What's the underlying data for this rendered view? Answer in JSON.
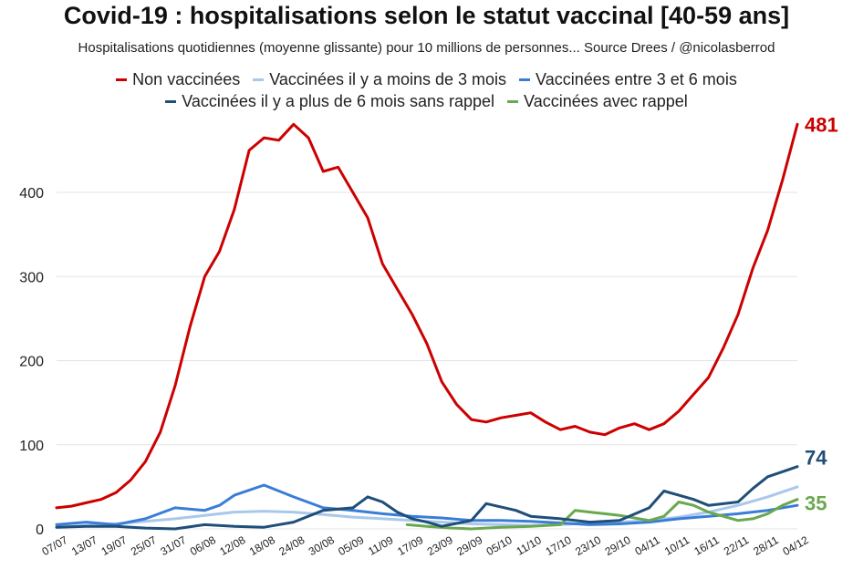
{
  "chart_data": {
    "type": "line",
    "title": "Covid-19 : hospitalisations selon le statut vaccinal [40-59 ans]",
    "subtitle": "Hospitalisations quotidiennes (moyenne glissante) pour 10 millions de personnes... Source Drees / @nicolasberrod",
    "ylim": [
      0,
      490
    ],
    "yticks": [
      0,
      100,
      200,
      300,
      400
    ],
    "grid": true,
    "x_tick_labels": [
      "07/07",
      "13/07",
      "19/07",
      "25/07",
      "31/07",
      "06/08",
      "12/08",
      "18/08",
      "24/08",
      "30/08",
      "05/09",
      "11/09",
      "17/09",
      "23/09",
      "29/09",
      "05/10",
      "11/10",
      "17/10",
      "23/10",
      "29/10",
      "04/11",
      "10/11",
      "16/11",
      "22/11",
      "28/11",
      "04/12"
    ],
    "x_start": "2021-07-07",
    "x_end": "2021-12-04",
    "series": [
      {
        "name": "Non vaccinées",
        "color": "#cc0000",
        "end_label": "481",
        "points": [
          [
            "2021-07-07",
            25
          ],
          [
            "2021-07-10",
            27
          ],
          [
            "2021-07-13",
            31
          ],
          [
            "2021-07-16",
            35
          ],
          [
            "2021-07-19",
            43
          ],
          [
            "2021-07-22",
            58
          ],
          [
            "2021-07-25",
            80
          ],
          [
            "2021-07-28",
            115
          ],
          [
            "2021-07-31",
            170
          ],
          [
            "2021-08-03",
            240
          ],
          [
            "2021-08-06",
            300
          ],
          [
            "2021-08-09",
            330
          ],
          [
            "2021-08-12",
            380
          ],
          [
            "2021-08-15",
            450
          ],
          [
            "2021-08-18",
            465
          ],
          [
            "2021-08-21",
            462
          ],
          [
            "2021-08-24",
            481
          ],
          [
            "2021-08-27",
            465
          ],
          [
            "2021-08-30",
            425
          ],
          [
            "2021-09-02",
            430
          ],
          [
            "2021-09-05",
            400
          ],
          [
            "2021-09-08",
            370
          ],
          [
            "2021-09-11",
            315
          ],
          [
            "2021-09-14",
            285
          ],
          [
            "2021-09-17",
            255
          ],
          [
            "2021-09-20",
            220
          ],
          [
            "2021-09-23",
            175
          ],
          [
            "2021-09-26",
            148
          ],
          [
            "2021-09-29",
            130
          ],
          [
            "2021-10-02",
            127
          ],
          [
            "2021-10-05",
            132
          ],
          [
            "2021-10-08",
            135
          ],
          [
            "2021-10-11",
            138
          ],
          [
            "2021-10-14",
            127
          ],
          [
            "2021-10-17",
            118
          ],
          [
            "2021-10-20",
            122
          ],
          [
            "2021-10-23",
            115
          ],
          [
            "2021-10-26",
            112
          ],
          [
            "2021-10-29",
            120
          ],
          [
            "2021-11-01",
            125
          ],
          [
            "2021-11-04",
            118
          ],
          [
            "2021-11-07",
            125
          ],
          [
            "2021-11-10",
            140
          ],
          [
            "2021-11-13",
            160
          ],
          [
            "2021-11-16",
            180
          ],
          [
            "2021-11-19",
            215
          ],
          [
            "2021-11-22",
            255
          ],
          [
            "2021-11-25",
            310
          ],
          [
            "2021-11-28",
            355
          ],
          [
            "2021-12-01",
            415
          ],
          [
            "2021-12-04",
            481
          ]
        ]
      },
      {
        "name": "Vaccinées il y a moins de 3 mois",
        "color": "#a9c8ec",
        "end_label": "",
        "points": [
          [
            "2021-07-07",
            2
          ],
          [
            "2021-07-13",
            4
          ],
          [
            "2021-07-19",
            6
          ],
          [
            "2021-07-25",
            9
          ],
          [
            "2021-07-31",
            12
          ],
          [
            "2021-08-06",
            16
          ],
          [
            "2021-08-12",
            20
          ],
          [
            "2021-08-18",
            21
          ],
          [
            "2021-08-24",
            20
          ],
          [
            "2021-08-30",
            17
          ],
          [
            "2021-09-05",
            14
          ],
          [
            "2021-09-11",
            12
          ],
          [
            "2021-09-17",
            10
          ],
          [
            "2021-09-23",
            8
          ],
          [
            "2021-09-29",
            6
          ],
          [
            "2021-10-05",
            5
          ],
          [
            "2021-10-11",
            4
          ],
          [
            "2021-10-17",
            5
          ],
          [
            "2021-10-23",
            7
          ],
          [
            "2021-10-29",
            8
          ],
          [
            "2021-11-04",
            10
          ],
          [
            "2021-11-10",
            14
          ],
          [
            "2021-11-16",
            20
          ],
          [
            "2021-11-22",
            28
          ],
          [
            "2021-11-28",
            38
          ],
          [
            "2021-12-04",
            50
          ]
        ]
      },
      {
        "name": "Vaccinées entre 3 et 6 mois",
        "color": "#3a7dd8",
        "end_label": "",
        "points": [
          [
            "2021-07-07",
            5
          ],
          [
            "2021-07-13",
            8
          ],
          [
            "2021-07-19",
            5
          ],
          [
            "2021-07-25",
            12
          ],
          [
            "2021-07-31",
            25
          ],
          [
            "2021-08-06",
            22
          ],
          [
            "2021-08-09",
            28
          ],
          [
            "2021-08-12",
            40
          ],
          [
            "2021-08-18",
            52
          ],
          [
            "2021-08-24",
            38
          ],
          [
            "2021-08-30",
            25
          ],
          [
            "2021-09-05",
            22
          ],
          [
            "2021-09-11",
            18
          ],
          [
            "2021-09-17",
            15
          ],
          [
            "2021-09-23",
            13
          ],
          [
            "2021-09-29",
            10
          ],
          [
            "2021-10-05",
            10
          ],
          [
            "2021-10-11",
            9
          ],
          [
            "2021-10-17",
            7
          ],
          [
            "2021-10-23",
            5
          ],
          [
            "2021-10-29",
            6
          ],
          [
            "2021-11-04",
            8
          ],
          [
            "2021-11-10",
            12
          ],
          [
            "2021-11-16",
            15
          ],
          [
            "2021-11-22",
            18
          ],
          [
            "2021-11-28",
            22
          ],
          [
            "2021-12-04",
            28
          ]
        ]
      },
      {
        "name": "Vaccinées il y a plus de 6 mois sans rappel",
        "color": "#1f4e79",
        "end_label": "74",
        "points": [
          [
            "2021-07-07",
            2
          ],
          [
            "2021-07-13",
            3
          ],
          [
            "2021-07-19",
            3
          ],
          [
            "2021-07-25",
            1
          ],
          [
            "2021-07-31",
            0
          ],
          [
            "2021-08-06",
            5
          ],
          [
            "2021-08-12",
            3
          ],
          [
            "2021-08-18",
            2
          ],
          [
            "2021-08-24",
            8
          ],
          [
            "2021-08-30",
            22
          ],
          [
            "2021-09-05",
            25
          ],
          [
            "2021-09-08",
            38
          ],
          [
            "2021-09-11",
            32
          ],
          [
            "2021-09-14",
            20
          ],
          [
            "2021-09-17",
            12
          ],
          [
            "2021-09-20",
            8
          ],
          [
            "2021-09-23",
            3
          ],
          [
            "2021-09-29",
            10
          ],
          [
            "2021-10-02",
            30
          ],
          [
            "2021-10-08",
            22
          ],
          [
            "2021-10-11",
            15
          ],
          [
            "2021-10-17",
            12
          ],
          [
            "2021-10-23",
            8
          ],
          [
            "2021-10-29",
            10
          ],
          [
            "2021-11-04",
            25
          ],
          [
            "2021-11-07",
            45
          ],
          [
            "2021-11-10",
            40
          ],
          [
            "2021-11-13",
            35
          ],
          [
            "2021-11-16",
            28
          ],
          [
            "2021-11-22",
            32
          ],
          [
            "2021-11-25",
            48
          ],
          [
            "2021-11-28",
            62
          ],
          [
            "2021-12-01",
            68
          ],
          [
            "2021-12-04",
            74
          ]
        ]
      },
      {
        "name": "Vaccinées avec rappel",
        "color": "#6aa84f",
        "end_label": "35",
        "points": [
          [
            "2021-09-16",
            5
          ],
          [
            "2021-09-20",
            3
          ],
          [
            "2021-09-25",
            1
          ],
          [
            "2021-09-29",
            0
          ],
          [
            "2021-10-05",
            2
          ],
          [
            "2021-10-11",
            3
          ],
          [
            "2021-10-17",
            5
          ],
          [
            "2021-10-20",
            22
          ],
          [
            "2021-10-23",
            20
          ],
          [
            "2021-10-26",
            18
          ],
          [
            "2021-10-29",
            16
          ],
          [
            "2021-11-01",
            13
          ],
          [
            "2021-11-04",
            10
          ],
          [
            "2021-11-07",
            15
          ],
          [
            "2021-11-10",
            32
          ],
          [
            "2021-11-13",
            28
          ],
          [
            "2021-11-16",
            20
          ],
          [
            "2021-11-19",
            15
          ],
          [
            "2021-11-22",
            10
          ],
          [
            "2021-11-25",
            12
          ],
          [
            "2021-11-28",
            18
          ],
          [
            "2021-12-01",
            28
          ],
          [
            "2021-12-04",
            35
          ]
        ]
      }
    ]
  },
  "legend_rows": [
    [
      0,
      1,
      2
    ],
    [
      3,
      4
    ]
  ]
}
